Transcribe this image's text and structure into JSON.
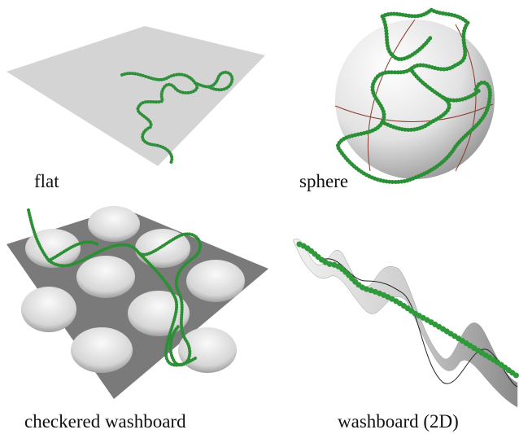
{
  "panels": [
    {
      "label": "flat"
    },
    {
      "label": "sphere"
    },
    {
      "label": "checkered washboard"
    },
    {
      "label": "washboard (2D)"
    }
  ]
}
